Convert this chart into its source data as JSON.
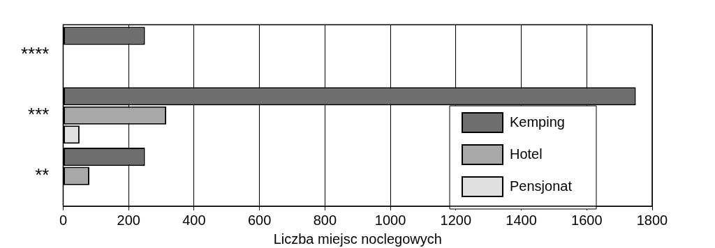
{
  "chart_data": {
    "type": "bar",
    "orientation": "horizontal",
    "xlabel": "Liczba miejsc noclegowych",
    "categories": [
      "****",
      "***",
      "**"
    ],
    "series": [
      {
        "name": "Kemping",
        "color": "#6e6e6e",
        "values": [
          250,
          1750,
          250
        ]
      },
      {
        "name": "Hotel",
        "color": "#a8a8a8",
        "values": [
          null,
          315,
          80
        ]
      },
      {
        "name": "Pensjonat",
        "color": "#e0e0e0",
        "values": [
          null,
          50,
          null
        ]
      }
    ],
    "xlim": [
      0,
      1800
    ],
    "xticks": [
      0,
      200,
      400,
      600,
      800,
      1000,
      1200,
      1400,
      1600,
      1800
    ],
    "grid": "x",
    "legend": "bottom right"
  }
}
